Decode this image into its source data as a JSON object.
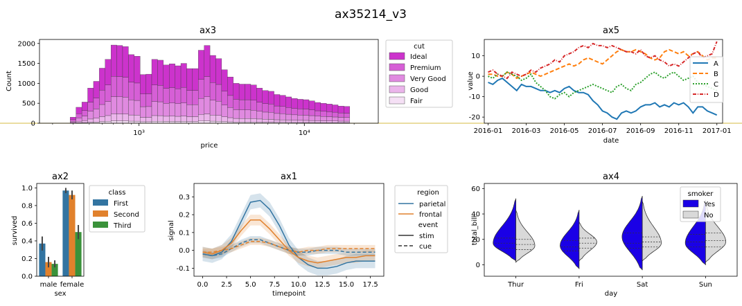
{
  "figure_title": "ax35214_v3",
  "colors": {
    "ideal": "#cc33cc",
    "premium": "#d65fd6",
    "verygood": "#e08ae0",
    "good": "#ebb5eb",
    "fair": "#f5e0f5",
    "first": "#3274a1",
    "second": "#e1812c",
    "third": "#3a923a",
    "parietal": "#3274a1",
    "frontal": "#e1812c",
    "A": "#1f77b4",
    "B": "#ff7f0e",
    "C": "#2ca02c",
    "D": "#d62728",
    "yes": "#1a00e6",
    "no": "#d9d9d9",
    "divider": "#c8a400"
  },
  "chart_data": [
    {
      "id": "ax3",
      "type": "bar",
      "title": "ax3",
      "xlabel": "price",
      "ylabel": "Count",
      "xscale": "log",
      "xlim": [
        250,
        28000
      ],
      "ylim": [
        0,
        2100
      ],
      "yticks": [
        0,
        500,
        1000,
        1500,
        2000
      ],
      "xticks": [
        {
          "value": 1000,
          "label": "10³"
        },
        {
          "value": 10000,
          "label": "10⁴"
        }
      ],
      "bin_edges_range": [
        326,
        18823
      ],
      "bins": 50,
      "totals": [
        0,
        0,
        150,
        400,
        530,
        880,
        1050,
        1380,
        1600,
        1960,
        1950,
        1920,
        1720,
        1680,
        1220,
        1230,
        1600,
        1580,
        1460,
        1490,
        1440,
        1500,
        1370,
        1370,
        1830,
        1950,
        1700,
        1620,
        1340,
        1160,
        1000,
        980,
        980,
        960,
        880,
        820,
        800,
        720,
        700,
        660,
        620,
        600,
        590,
        560,
        520,
        500,
        480,
        460,
        430,
        420
      ],
      "legend": {
        "title": "cut",
        "entries": [
          "Ideal",
          "Premium",
          "Very Good",
          "Good",
          "Fair"
        ]
      },
      "series": [
        {
          "name": "Ideal",
          "share": 0.4
        },
        {
          "name": "Premium",
          "share": 0.26
        },
        {
          "name": "Very Good",
          "share": 0.22
        },
        {
          "name": "Good",
          "share": 0.09
        },
        {
          "name": "Fair",
          "share": 0.03
        }
      ]
    },
    {
      "id": "ax5",
      "type": "line",
      "title": "ax5",
      "xlabel": "date",
      "ylabel": "value",
      "xticklabels": [
        "2016-01",
        "2016-03",
        "2016-05",
        "2016-07",
        "2016-09",
        "2016-11",
        "2017-01"
      ],
      "xlim": [
        -0.2,
        12.3
      ],
      "ylim": [
        -23,
        18
      ],
      "yticks": [
        -20,
        -10,
        0,
        10
      ],
      "x": [
        0,
        0.25,
        0.5,
        0.75,
        1,
        1.25,
        1.5,
        1.75,
        2,
        2.25,
        2.5,
        2.75,
        3,
        3.25,
        3.5,
        3.75,
        4,
        4.25,
        4.5,
        4.75,
        5,
        5.25,
        5.5,
        5.75,
        6,
        6.25,
        6.5,
        6.75,
        7,
        7.25,
        7.5,
        7.75,
        8,
        8.25,
        8.5,
        8.75,
        9,
        9.25,
        9.5,
        9.75,
        10,
        10.25,
        10.5,
        10.75,
        11,
        11.25,
        11.5,
        11.75,
        12
      ],
      "series": [
        {
          "name": "A",
          "values": [
            -3,
            -4,
            -2,
            -1,
            -3,
            -5,
            -7,
            -4,
            -5,
            -5,
            -6,
            -7,
            -7,
            -8,
            -7,
            -8,
            -6,
            -5,
            -7,
            -8,
            -8,
            -9,
            -12,
            -14,
            -17,
            -18,
            -20,
            -21,
            -18,
            -17,
            -18,
            -17,
            -15,
            -14,
            -14,
            -13,
            -15,
            -14,
            -15,
            -13,
            -14,
            -13,
            -15,
            -18,
            -15,
            -15,
            -17,
            -18,
            -19
          ]
        },
        {
          "name": "B",
          "values": [
            1,
            1,
            0,
            0,
            2,
            1,
            -1,
            0,
            1,
            2,
            1,
            0,
            1,
            2,
            3,
            4,
            5,
            6,
            5,
            6,
            8,
            9,
            8,
            7,
            6,
            8,
            10,
            12,
            13,
            12,
            12,
            13,
            12,
            11,
            9,
            8,
            9,
            12,
            13,
            12,
            11,
            12,
            10,
            11,
            12,
            10,
            8,
            9,
            9
          ]
        },
        {
          "name": "C",
          "values": [
            0,
            -1,
            1,
            0,
            2,
            1,
            0,
            -2,
            -1,
            1,
            -3,
            -5,
            -7,
            -10,
            -11,
            -9,
            -8,
            -10,
            -8,
            -7,
            -6,
            -5,
            -4,
            -5,
            -6,
            -7,
            -8,
            -5,
            -4,
            -6,
            -7,
            -4,
            -3,
            -1,
            1,
            2,
            0,
            -1,
            1,
            2,
            0,
            -2,
            -1,
            0,
            -3,
            -4,
            -5,
            -6,
            -7
          ]
        },
        {
          "name": "D",
          "values": [
            2,
            3,
            1,
            0,
            -1,
            2,
            1,
            0,
            1,
            3,
            2,
            4,
            5,
            6,
            8,
            7,
            10,
            11,
            12,
            14,
            15,
            14,
            16,
            15,
            15,
            14,
            15,
            14,
            13,
            12,
            12,
            11,
            13,
            10,
            9,
            10,
            8,
            7,
            5,
            6,
            5,
            7,
            9,
            11,
            12,
            9,
            10,
            11,
            17
          ]
        }
      ],
      "legend": {
        "entries": [
          "A",
          "B",
          "C",
          "D"
        ]
      }
    },
    {
      "id": "ax2",
      "type": "bar",
      "title": "ax2",
      "xlabel": "sex",
      "ylabel": "survived",
      "categories": [
        "male",
        "female"
      ],
      "ylim": [
        0,
        1.05
      ],
      "yticks": [
        0.0,
        0.2,
        0.4,
        0.6,
        0.8,
        1.0
      ],
      "series": [
        {
          "name": "First",
          "values": [
            0.37,
            0.97
          ],
          "err": [
            0.08,
            0.03
          ]
        },
        {
          "name": "Second",
          "values": [
            0.16,
            0.92
          ],
          "err": [
            0.06,
            0.05
          ]
        },
        {
          "name": "Third",
          "values": [
            0.14,
            0.5
          ],
          "err": [
            0.04,
            0.08
          ]
        }
      ],
      "legend": {
        "title": "class",
        "entries": [
          "First",
          "Second",
          "Third"
        ]
      }
    },
    {
      "id": "ax1",
      "type": "line",
      "title": "ax1",
      "xlabel": "timepoint",
      "ylabel": "signal",
      "xlim": [
        -0.9,
        18.9
      ],
      "ylim": [
        -0.145,
        0.375
      ],
      "xticks": [
        0.0,
        2.5,
        5.0,
        7.5,
        10.0,
        12.5,
        15.0,
        17.5
      ],
      "yticks": [
        -0.1,
        0.0,
        0.1,
        0.2,
        0.3
      ],
      "x": [
        0,
        1,
        2,
        3,
        4,
        5,
        6,
        7,
        8,
        9,
        10,
        11,
        12,
        13,
        14,
        15,
        16,
        17,
        18
      ],
      "series": [
        {
          "name": "parietal stim",
          "region": "parietal",
          "event": "stim",
          "values": [
            -0.02,
            -0.03,
            -0.01,
            0.05,
            0.16,
            0.27,
            0.28,
            0.23,
            0.14,
            0.03,
            -0.04,
            -0.08,
            -0.1,
            -0.1,
            -0.09,
            -0.07,
            -0.06,
            -0.06,
            -0.06
          ],
          "ci": 0.04
        },
        {
          "name": "frontal stim",
          "region": "frontal",
          "event": "stim",
          "values": [
            -0.01,
            -0.02,
            0.0,
            0.04,
            0.11,
            0.17,
            0.17,
            0.12,
            0.06,
            0.0,
            -0.04,
            -0.06,
            -0.07,
            -0.06,
            -0.05,
            -0.04,
            -0.04,
            -0.03,
            -0.03
          ],
          "ci": 0.03
        },
        {
          "name": "parietal cue",
          "region": "parietal",
          "event": "cue",
          "values": [
            -0.02,
            -0.03,
            -0.02,
            0.01,
            0.04,
            0.06,
            0.06,
            0.04,
            0.02,
            0.0,
            -0.01,
            -0.01,
            0.0,
            0.0,
            0.0,
            -0.01,
            -0.01,
            -0.01,
            -0.01
          ],
          "ci": 0.02
        },
        {
          "name": "frontal cue",
          "region": "frontal",
          "event": "cue",
          "values": [
            -0.01,
            -0.01,
            0.0,
            0.01,
            0.03,
            0.05,
            0.05,
            0.04,
            0.02,
            0.0,
            -0.01,
            0.0,
            0.0,
            0.01,
            0.01,
            0.01,
            0.01,
            0.01,
            0.01
          ],
          "ci": 0.02
        }
      ],
      "legend": {
        "entries": [
          "region",
          "parietal",
          "frontal",
          "event",
          "stim",
          "cue"
        ]
      }
    },
    {
      "id": "ax4",
      "type": "violin",
      "title": "ax4",
      "xlabel": "day",
      "ylabel": "total_bill",
      "categories": [
        "Thur",
        "Fri",
        "Sat",
        "Sun"
      ],
      "ylim": [
        -9,
        64
      ],
      "yticks": [
        0,
        20,
        40,
        60
      ],
      "violins": [
        {
          "day": "Thur",
          "yes": {
            "lo": 3,
            "hi": 52,
            "peak": 17,
            "w": 0.9,
            "q": [
              13,
              17,
              21
            ]
          },
          "no": {
            "lo": 2,
            "hi": 43,
            "peak": 15,
            "w": 0.75,
            "q": [
              12,
              16,
              20
            ]
          }
        },
        {
          "day": "Fri",
          "yes": {
            "lo": -3,
            "hi": 43,
            "peak": 15,
            "w": 0.75,
            "q": [
              11,
              14,
              19
            ]
          },
          "no": {
            "lo": 3,
            "hi": 34,
            "peak": 18,
            "w": 0.7,
            "q": [
              13,
              17,
              21
            ]
          }
        },
        {
          "day": "Sat",
          "yes": {
            "lo": -4,
            "hi": 54,
            "peak": 22,
            "w": 0.8,
            "q": [
              13,
              17,
              25
            ]
          },
          "no": {
            "lo": 3,
            "hi": 50,
            "peak": 17,
            "w": 0.75,
            "q": [
              14,
              18,
              22
            ]
          }
        },
        {
          "day": "Sun",
          "yes": {
            "lo": 0,
            "hi": 51,
            "peak": 17,
            "w": 0.8,
            "q": [
              14,
              18,
              24
            ]
          },
          "no": {
            "lo": 2,
            "hi": 49,
            "peak": 18,
            "w": 0.8,
            "q": [
              14,
              19,
              25
            ]
          }
        }
      ],
      "legend": {
        "title": "smoker",
        "entries": [
          "Yes",
          "No"
        ]
      }
    }
  ]
}
